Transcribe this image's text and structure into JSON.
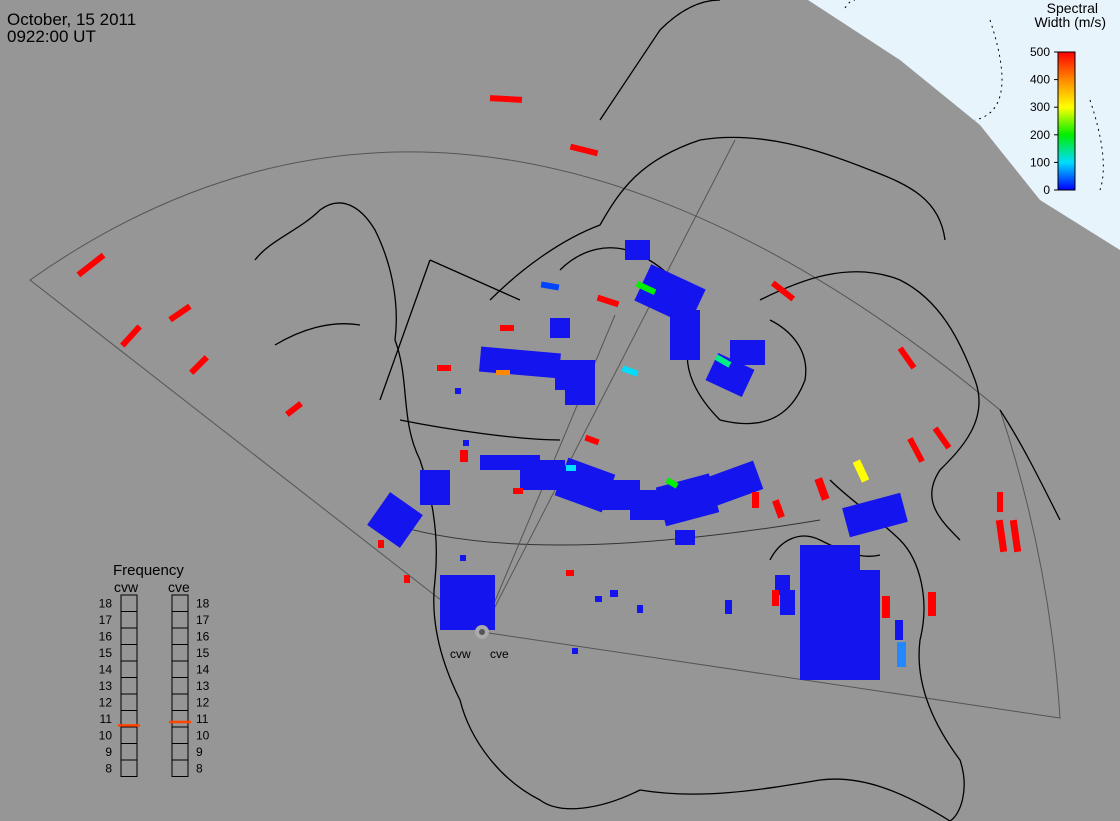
{
  "header": {
    "date": "October, 15 2011",
    "time": "0922:00 UT"
  },
  "colorbar": {
    "title_line1": "Spectral",
    "title_line2": "Width (m/s)",
    "ticks": [
      "500",
      "400",
      "300",
      "200",
      "100",
      "0"
    ],
    "range": [
      0,
      500
    ],
    "colors": [
      "#0000ff",
      "#00ddff",
      "#00ee00",
      "#ffff00",
      "#ff8800",
      "#ff0000"
    ]
  },
  "frequency_panel": {
    "title": "Frequency",
    "radars": [
      "cvw",
      "cve"
    ],
    "scale": [
      "18",
      "17",
      "16",
      "15",
      "14",
      "13",
      "12",
      "11",
      "10",
      "9",
      "8"
    ],
    "range_mhz": [
      8,
      18
    ],
    "cvw_mhz": 10.6,
    "cve_mhz": 10.8,
    "marker_color": "#ff4400"
  },
  "radar_labels": [
    "cvw",
    "cve"
  ],
  "colors": {
    "background": "#969696",
    "ocean_polar": "#e8f4fc",
    "scatter_low": "#0000ff",
    "scatter_high": "#ff0000"
  }
}
